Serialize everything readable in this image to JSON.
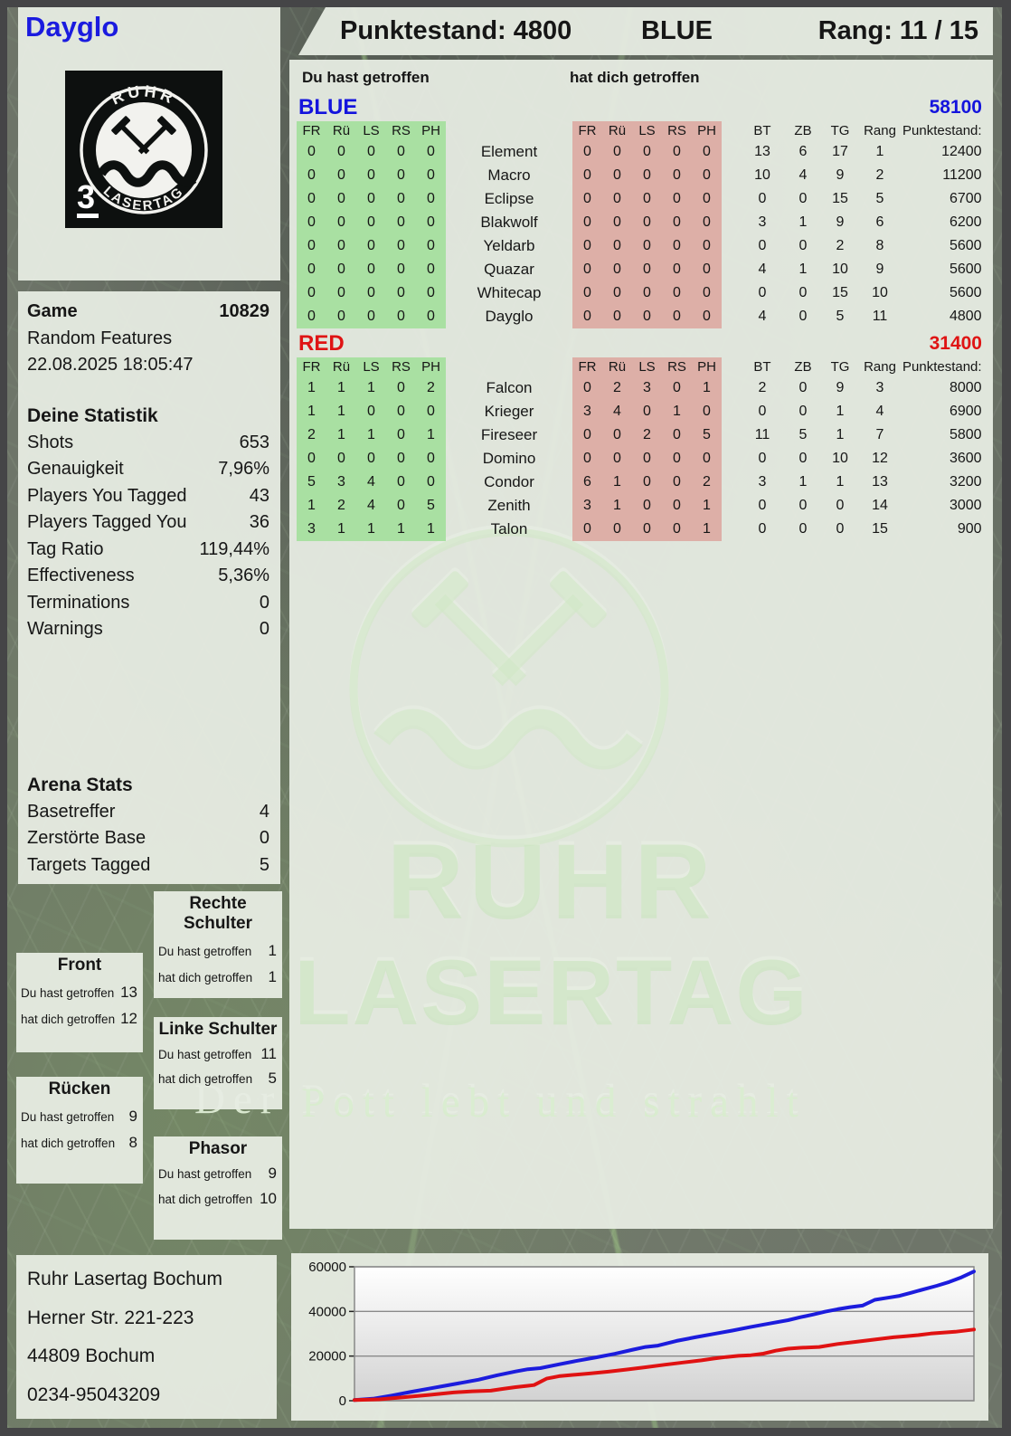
{
  "header": {
    "player_name": "Dayglo",
    "score_label": "Punktestand: 4800",
    "team": "BLUE",
    "rank_label": "Rang: 11 / 15"
  },
  "logo": {
    "ring_top": "RUHR",
    "ring_bottom": "LASERTAG",
    "badge_number": "3"
  },
  "watermark": {
    "line1": "RUHR",
    "line2": "LASERTAG",
    "tagline": "Der Pott lebt und strahlt"
  },
  "labels": {
    "you_hit": "Du hast getroffen",
    "hit_you": "hat dich getroffen"
  },
  "game_info": {
    "game_label": "Game",
    "game_number": "10829",
    "mode": "Random Features",
    "datetime": "22.08.2025 18:05:47"
  },
  "your_stats": {
    "title": "Deine Statistik",
    "rows": [
      {
        "label": "Shots",
        "value": "653"
      },
      {
        "label": "Genauigkeit",
        "value": "7,96%"
      },
      {
        "label": "Players You Tagged",
        "value": "43"
      },
      {
        "label": "Players Tagged You",
        "value": "36"
      },
      {
        "label": "Tag Ratio",
        "value": "119,44%"
      },
      {
        "label": "Effectiveness",
        "value": "5,36%"
      },
      {
        "label": "Terminations",
        "value": "0"
      },
      {
        "label": "Warnings",
        "value": "0"
      }
    ]
  },
  "arena_stats": {
    "title": "Arena Stats",
    "rows": [
      {
        "label": "Basetreffer",
        "value": "4"
      },
      {
        "label": "Zerstörte Base",
        "value": "0"
      },
      {
        "label": "Targets Tagged",
        "value": "5"
      }
    ]
  },
  "hit_zones": [
    {
      "title": "Front",
      "you": "13",
      "them": "12"
    },
    {
      "title": "Rücken",
      "you": "9",
      "them": "8"
    },
    {
      "title": "Rechte Schulter",
      "you": "1",
      "them": "1"
    },
    {
      "title": "Linke Schulter",
      "you": "11",
      "them": "5"
    },
    {
      "title": "Phasor",
      "you": "9",
      "them": "10"
    }
  ],
  "address": {
    "lines": [
      "Ruhr Lasertag Bochum",
      "Herner Str. 221-223",
      "44809 Bochum",
      "0234-95043209"
    ]
  },
  "scoreboard": {
    "hit_columns": [
      "FR",
      "Rü",
      "LS",
      "RS",
      "PH"
    ],
    "stat_columns": [
      "BT",
      "ZB",
      "TG",
      "Rang",
      "Punktestand:"
    ],
    "teams": [
      {
        "name": "BLUE",
        "color": "#1414dd",
        "total": "58100",
        "players": [
          {
            "name": "Element",
            "you": [
              "0",
              "0",
              "0",
              "0",
              "0"
            ],
            "them": [
              "0",
              "0",
              "0",
              "0",
              "0"
            ],
            "bt": "13",
            "zb": "6",
            "tg": "17",
            "rang": "1",
            "punkte": "12400"
          },
          {
            "name": "Macro",
            "you": [
              "0",
              "0",
              "0",
              "0",
              "0"
            ],
            "them": [
              "0",
              "0",
              "0",
              "0",
              "0"
            ],
            "bt": "10",
            "zb": "4",
            "tg": "9",
            "rang": "2",
            "punkte": "11200"
          },
          {
            "name": "Eclipse",
            "you": [
              "0",
              "0",
              "0",
              "0",
              "0"
            ],
            "them": [
              "0",
              "0",
              "0",
              "0",
              "0"
            ],
            "bt": "0",
            "zb": "0",
            "tg": "15",
            "rang": "5",
            "punkte": "6700"
          },
          {
            "name": "Blakwolf",
            "you": [
              "0",
              "0",
              "0",
              "0",
              "0"
            ],
            "them": [
              "0",
              "0",
              "0",
              "0",
              "0"
            ],
            "bt": "3",
            "zb": "1",
            "tg": "9",
            "rang": "6",
            "punkte": "6200"
          },
          {
            "name": "Yeldarb",
            "you": [
              "0",
              "0",
              "0",
              "0",
              "0"
            ],
            "them": [
              "0",
              "0",
              "0",
              "0",
              "0"
            ],
            "bt": "0",
            "zb": "0",
            "tg": "2",
            "rang": "8",
            "punkte": "5600"
          },
          {
            "name": "Quazar",
            "you": [
              "0",
              "0",
              "0",
              "0",
              "0"
            ],
            "them": [
              "0",
              "0",
              "0",
              "0",
              "0"
            ],
            "bt": "4",
            "zb": "1",
            "tg": "10",
            "rang": "9",
            "punkte": "5600"
          },
          {
            "name": "Whitecap",
            "you": [
              "0",
              "0",
              "0",
              "0",
              "0"
            ],
            "them": [
              "0",
              "0",
              "0",
              "0",
              "0"
            ],
            "bt": "0",
            "zb": "0",
            "tg": "15",
            "rang": "10",
            "punkte": "5600"
          },
          {
            "name": "Dayglo",
            "you": [
              "0",
              "0",
              "0",
              "0",
              "0"
            ],
            "them": [
              "0",
              "0",
              "0",
              "0",
              "0"
            ],
            "bt": "4",
            "zb": "0",
            "tg": "5",
            "rang": "11",
            "punkte": "4800"
          }
        ]
      },
      {
        "name": "RED",
        "color": "#df1414",
        "total": "31400",
        "players": [
          {
            "name": "Falcon",
            "you": [
              "1",
              "1",
              "1",
              "0",
              "2"
            ],
            "them": [
              "0",
              "2",
              "3",
              "0",
              "1"
            ],
            "bt": "2",
            "zb": "0",
            "tg": "9",
            "rang": "3",
            "punkte": "8000"
          },
          {
            "name": "Krieger",
            "you": [
              "1",
              "1",
              "0",
              "0",
              "0"
            ],
            "them": [
              "3",
              "4",
              "0",
              "1",
              "0"
            ],
            "bt": "0",
            "zb": "0",
            "tg": "1",
            "rang": "4",
            "punkte": "6900"
          },
          {
            "name": "Fireseer",
            "you": [
              "2",
              "1",
              "1",
              "0",
              "1"
            ],
            "them": [
              "0",
              "0",
              "2",
              "0",
              "5"
            ],
            "bt": "11",
            "zb": "5",
            "tg": "1",
            "rang": "7",
            "punkte": "5800"
          },
          {
            "name": "Domino",
            "you": [
              "0",
              "0",
              "0",
              "0",
              "0"
            ],
            "them": [
              "0",
              "0",
              "0",
              "0",
              "0"
            ],
            "bt": "0",
            "zb": "0",
            "tg": "10",
            "rang": "12",
            "punkte": "3600"
          },
          {
            "name": "Condor",
            "you": [
              "5",
              "3",
              "4",
              "0",
              "0"
            ],
            "them": [
              "6",
              "1",
              "0",
              "0",
              "2"
            ],
            "bt": "3",
            "zb": "1",
            "tg": "1",
            "rang": "13",
            "punkte": "3200"
          },
          {
            "name": "Zenith",
            "you": [
              "1",
              "2",
              "4",
              "0",
              "5"
            ],
            "them": [
              "3",
              "1",
              "0",
              "0",
              "1"
            ],
            "bt": "0",
            "zb": "0",
            "tg": "0",
            "rang": "14",
            "punkte": "3000"
          },
          {
            "name": "Talon",
            "you": [
              "3",
              "1",
              "1",
              "1",
              "1"
            ],
            "them": [
              "0",
              "0",
              "0",
              "0",
              "1"
            ],
            "bt": "0",
            "zb": "0",
            "tg": "0",
            "rang": "15",
            "punkte": "900"
          }
        ]
      }
    ]
  },
  "chart_data": {
    "type": "line",
    "title": "",
    "xlabel": "",
    "ylabel": "",
    "ylim": [
      0,
      60000
    ],
    "yticks": [
      0,
      20000,
      40000,
      60000
    ],
    "grid": true,
    "legend": "none",
    "series": [
      {
        "name": "BLUE",
        "color": "#1c1cdd",
        "points": [
          [
            0,
            300
          ],
          [
            3,
            900
          ],
          [
            6,
            2300
          ],
          [
            9,
            3900
          ],
          [
            12,
            5400
          ],
          [
            15,
            6900
          ],
          [
            18,
            8400
          ],
          [
            20,
            9400
          ],
          [
            23,
            11400
          ],
          [
            26,
            13100
          ],
          [
            28,
            14100
          ],
          [
            30,
            14600
          ],
          [
            33,
            16300
          ],
          [
            36,
            17900
          ],
          [
            39,
            19400
          ],
          [
            42,
            21000
          ],
          [
            45,
            22900
          ],
          [
            47,
            24100
          ],
          [
            49,
            24700
          ],
          [
            52,
            26800
          ],
          [
            55,
            28400
          ],
          [
            58,
            29900
          ],
          [
            61,
            31400
          ],
          [
            64,
            33100
          ],
          [
            67,
            34600
          ],
          [
            70,
            36100
          ],
          [
            72,
            37400
          ],
          [
            74,
            38600
          ],
          [
            76,
            39900
          ],
          [
            78,
            41000
          ],
          [
            80,
            41900
          ],
          [
            82,
            42600
          ],
          [
            84,
            45200
          ],
          [
            86,
            46100
          ],
          [
            88,
            47000
          ],
          [
            90,
            48500
          ],
          [
            92,
            50000
          ],
          [
            94,
            51500
          ],
          [
            96,
            53200
          ],
          [
            98,
            55300
          ],
          [
            100,
            57900
          ]
        ]
      },
      {
        "name": "RED",
        "color": "#e01212",
        "points": [
          [
            0,
            300
          ],
          [
            4,
            600
          ],
          [
            8,
            1600
          ],
          [
            12,
            2600
          ],
          [
            16,
            3700
          ],
          [
            19,
            4200
          ],
          [
            22,
            4500
          ],
          [
            24,
            5300
          ],
          [
            26,
            6100
          ],
          [
            28,
            6700
          ],
          [
            29,
            7000
          ],
          [
            31,
            9900
          ],
          [
            33,
            11000
          ],
          [
            35,
            11500
          ],
          [
            38,
            12200
          ],
          [
            41,
            13000
          ],
          [
            44,
            14000
          ],
          [
            47,
            15000
          ],
          [
            50,
            16100
          ],
          [
            53,
            17100
          ],
          [
            56,
            18100
          ],
          [
            58,
            18900
          ],
          [
            60,
            19600
          ],
          [
            62,
            20100
          ],
          [
            64,
            20400
          ],
          [
            66,
            21100
          ],
          [
            68,
            22400
          ],
          [
            70,
            23300
          ],
          [
            72,
            23700
          ],
          [
            75,
            24100
          ],
          [
            78,
            25400
          ],
          [
            81,
            26400
          ],
          [
            84,
            27400
          ],
          [
            87,
            28400
          ],
          [
            89,
            28900
          ],
          [
            91,
            29400
          ],
          [
            93,
            30100
          ],
          [
            95,
            30500
          ],
          [
            97,
            30900
          ],
          [
            100,
            31900
          ]
        ]
      }
    ]
  }
}
